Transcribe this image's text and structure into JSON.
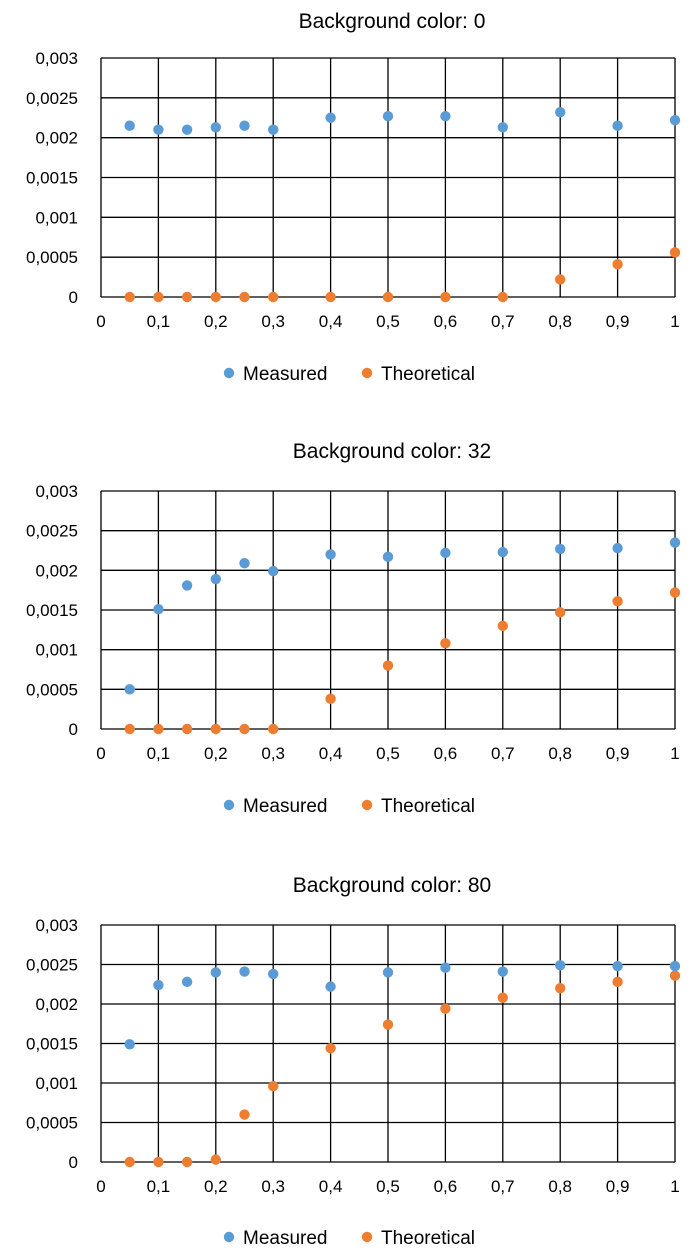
{
  "colors": {
    "measured": "#5B9BD5",
    "theoretical": "#ED7D31",
    "grid": "#000000",
    "background": "#ffffff"
  },
  "chart_data": [
    {
      "type": "scatter",
      "title": "Background color: 0",
      "xlabel": "",
      "ylabel": "",
      "xlim": [
        0,
        1
      ],
      "ylim": [
        0,
        0.003
      ],
      "grid": true,
      "legend_position": "bottom",
      "x_ticks": [
        "0",
        "0,1",
        "0,2",
        "0,3",
        "0,4",
        "0,5",
        "0,6",
        "0,7",
        "0,8",
        "0,9",
        "1"
      ],
      "y_ticks": [
        "0",
        "0,0005",
        "0,001",
        "0,0015",
        "0,002",
        "0,0025",
        "0,003"
      ],
      "series": [
        {
          "name": "Measured",
          "color": "#5B9BD5",
          "x": [
            0.05,
            0.1,
            0.15,
            0.2,
            0.25,
            0.3,
            0.4,
            0.5,
            0.6,
            0.7,
            0.8,
            0.9,
            1.0
          ],
          "y": [
            0.00215,
            0.0021,
            0.0021,
            0.00213,
            0.00215,
            0.0021,
            0.00225,
            0.00227,
            0.00227,
            0.00213,
            0.00232,
            0.00215,
            0.00222
          ]
        },
        {
          "name": "Theoretical",
          "color": "#ED7D31",
          "x": [
            0.05,
            0.1,
            0.15,
            0.2,
            0.25,
            0.3,
            0.4,
            0.5,
            0.6,
            0.7,
            0.8,
            0.9,
            1.0
          ],
          "y": [
            0,
            0,
            0,
            0,
            0,
            0,
            0,
            0,
            0,
            0,
            0.00022,
            0.00041,
            0.00056
          ]
        }
      ]
    },
    {
      "type": "scatter",
      "title": "Background color: 32",
      "xlabel": "",
      "ylabel": "",
      "xlim": [
        0,
        1
      ],
      "ylim": [
        0,
        0.003
      ],
      "grid": true,
      "legend_position": "bottom",
      "x_ticks": [
        "0",
        "0,1",
        "0,2",
        "0,3",
        "0,4",
        "0,5",
        "0,6",
        "0,7",
        "0,8",
        "0,9",
        "1"
      ],
      "y_ticks": [
        "0",
        "0,0005",
        "0,001",
        "0,0015",
        "0,002",
        "0,0025",
        "0,003"
      ],
      "series": [
        {
          "name": "Measured",
          "color": "#5B9BD5",
          "x": [
            0.05,
            0.1,
            0.15,
            0.2,
            0.25,
            0.3,
            0.4,
            0.5,
            0.6,
            0.7,
            0.8,
            0.9,
            1.0
          ],
          "y": [
            0.0005,
            0.00151,
            0.00181,
            0.00189,
            0.00209,
            0.00199,
            0.0022,
            0.00217,
            0.00222,
            0.00223,
            0.00227,
            0.00228,
            0.00235
          ]
        },
        {
          "name": "Theoretical",
          "color": "#ED7D31",
          "x": [
            0.05,
            0.1,
            0.15,
            0.2,
            0.25,
            0.3,
            0.4,
            0.5,
            0.6,
            0.7,
            0.8,
            0.9,
            1.0
          ],
          "y": [
            0,
            0,
            0,
            0,
            0,
            0,
            0.00038,
            0.0008,
            0.00108,
            0.0013,
            0.00147,
            0.00161,
            0.00172
          ]
        }
      ]
    },
    {
      "type": "scatter",
      "title": "Background color: 80",
      "xlabel": "",
      "ylabel": "",
      "xlim": [
        0,
        1
      ],
      "ylim": [
        0,
        0.003
      ],
      "grid": true,
      "legend_position": "bottom",
      "x_ticks": [
        "0",
        "0,1",
        "0,2",
        "0,3",
        "0,4",
        "0,5",
        "0,6",
        "0,7",
        "0,8",
        "0,9",
        "1"
      ],
      "y_ticks": [
        "0",
        "0,0005",
        "0,001",
        "0,0015",
        "0,002",
        "0,0025",
        "0,003"
      ],
      "series": [
        {
          "name": "Measured",
          "color": "#5B9BD5",
          "x": [
            0.05,
            0.1,
            0.15,
            0.2,
            0.25,
            0.3,
            0.4,
            0.5,
            0.6,
            0.7,
            0.8,
            0.9,
            1.0
          ],
          "y": [
            0.00149,
            0.00224,
            0.00228,
            0.0024,
            0.00241,
            0.00238,
            0.00222,
            0.0024,
            0.00246,
            0.00241,
            0.00249,
            0.00248,
            0.00248
          ]
        },
        {
          "name": "Theoretical",
          "color": "#ED7D31",
          "x": [
            0.05,
            0.1,
            0.15,
            0.2,
            0.25,
            0.3,
            0.4,
            0.5,
            0.6,
            0.7,
            0.8,
            0.9,
            1.0
          ],
          "y": [
            0,
            0,
            0,
            3e-05,
            0.0006,
            0.00096,
            0.00144,
            0.00174,
            0.00194,
            0.00208,
            0.0022,
            0.00228,
            0.00236
          ]
        }
      ]
    }
  ]
}
